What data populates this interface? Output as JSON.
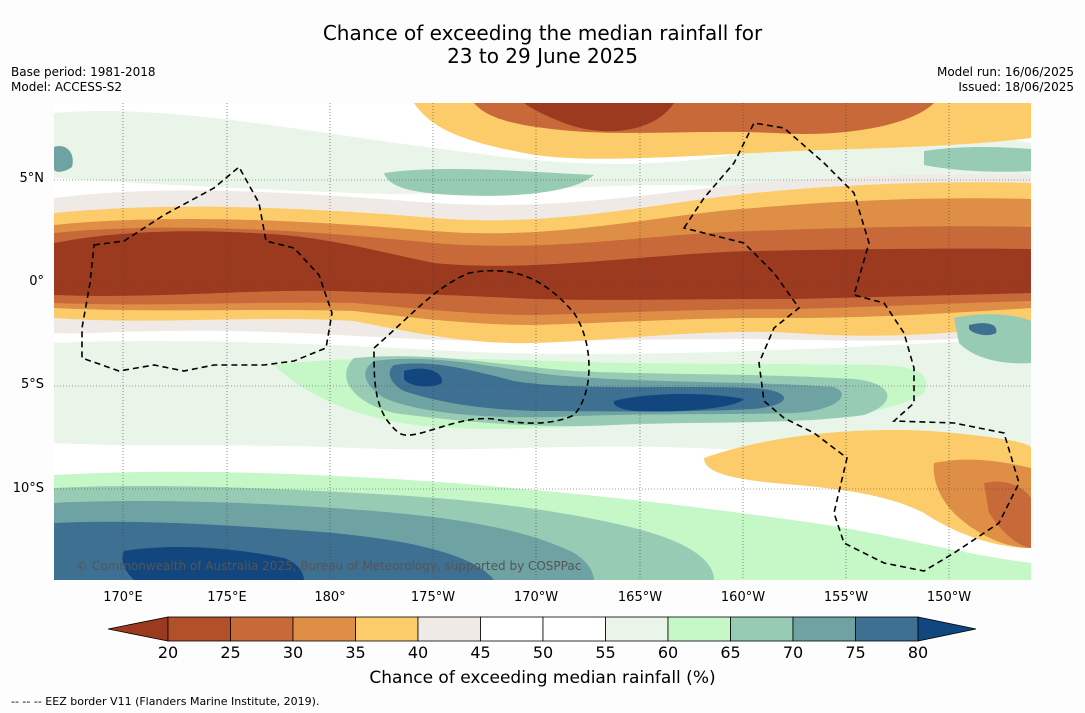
{
  "header": {
    "title_line1": "Chance of exceeding the median rainfall for",
    "title_line2": "23 to 29 June 2025",
    "base_period": "Base period: 1981-2018",
    "model": "Model: ACCESS-S2",
    "model_run": "Model run: 16/06/2025",
    "issued": "Issued: 18/06/2025"
  },
  "map": {
    "lat_labels": [
      "5°N",
      "0°",
      "5°S",
      "10°S"
    ],
    "lon_labels": [
      "170°E",
      "175°E",
      "180°",
      "175°W",
      "170°W",
      "165°W",
      "160°W",
      "155°W",
      "150°W"
    ],
    "copyright": "© Commonwealth of Australia 2025, Bureau of Meteorology, supported by COSPPac",
    "grid_lines": true,
    "eez_border_style": "dashed"
  },
  "legend": {
    "ticks": [
      "20",
      "25",
      "30",
      "35",
      "40",
      "45",
      "50",
      "55",
      "60",
      "65",
      "70",
      "75",
      "80"
    ],
    "colors": [
      "#9b3a1f",
      "#b2502a",
      "#c8693a",
      "#df8f45",
      "#fdcc6a",
      "#efeae6",
      "#ffffff",
      "#ffffff",
      "#e9f5e8",
      "#c5f7c7",
      "#98cbb4",
      "#6ea2a3",
      "#3e7092",
      "#11467f"
    ],
    "label": "Chance of exceeding median rainfall (%)"
  },
  "footer": {
    "eez_note": "--  --  -- EEZ border V11 (Flanders Marine Institute, 2019)."
  }
}
